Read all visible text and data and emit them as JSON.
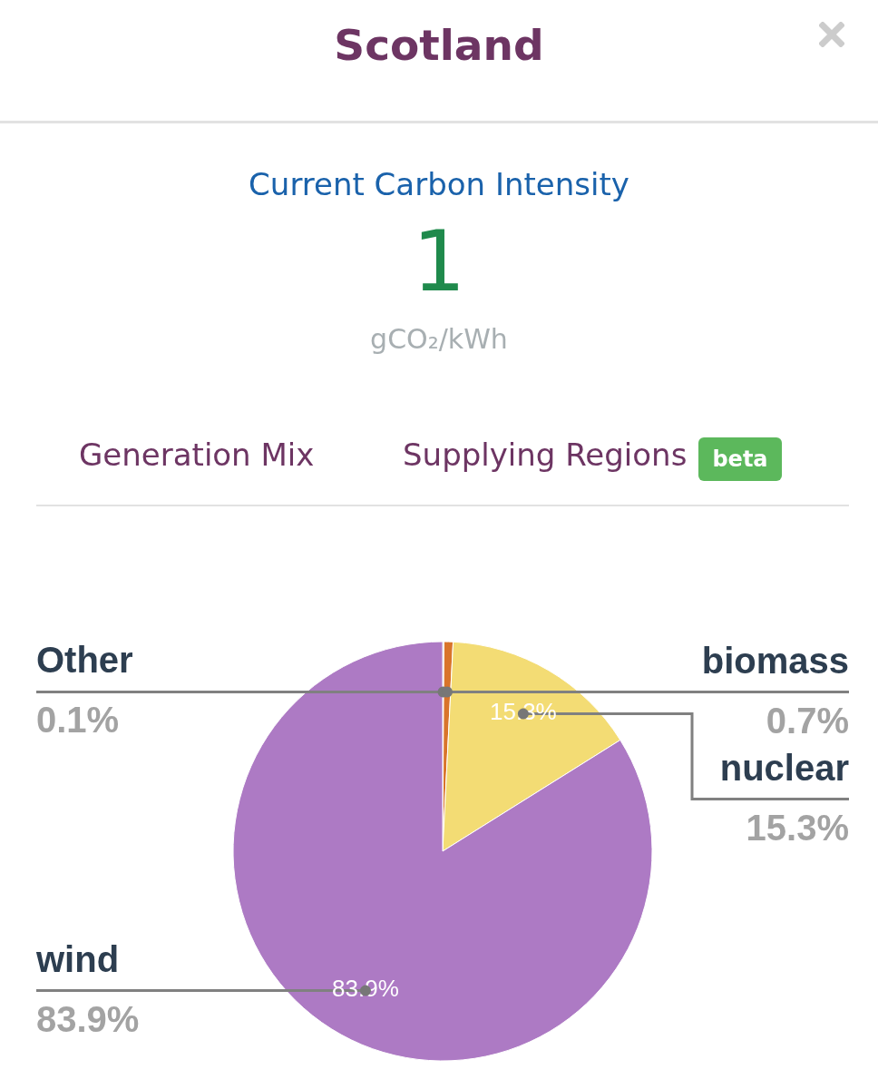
{
  "chart_data": {
    "type": "pie",
    "title": "Scotland",
    "subtitle": "Current Carbon Intensity",
    "categories": [
      "Other",
      "biomass",
      "nuclear",
      "wind"
    ],
    "values": [
      0.1,
      0.7,
      15.3,
      83.9
    ],
    "colors": [
      "#9e9e9e",
      "#d9742a",
      "#f3dc74",
      "#ad7ac4"
    ],
    "value_labels": [
      "0.1%",
      "0.7%",
      "15.3%",
      "83.9%"
    ],
    "annotations": [
      "1",
      "gCO₂/kWh",
      "Generation Mix",
      "Supplying Regions",
      "beta"
    ]
  }
}
